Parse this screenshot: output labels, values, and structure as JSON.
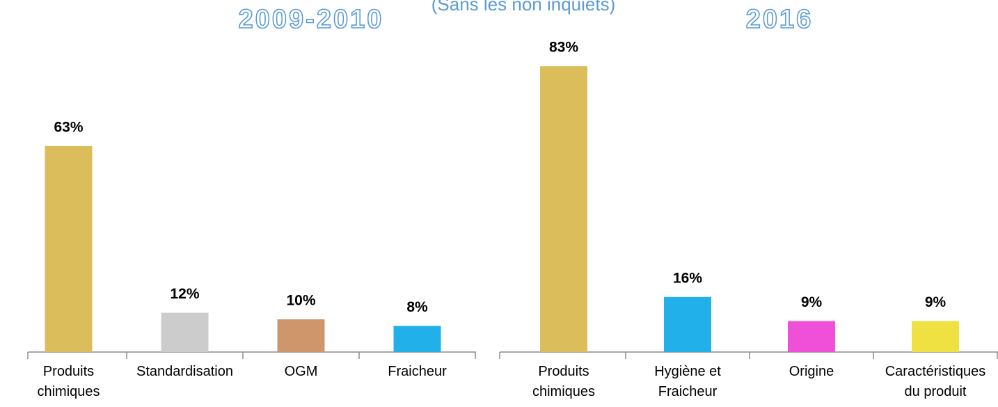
{
  "subtitle": "(Sans les non inquiets)",
  "chart_data": [
    {
      "type": "bar",
      "title": "2009-2010",
      "categories": [
        "Produits\nchimiques",
        "Standardisation",
        "OGM",
        "Fraicheur"
      ],
      "values": [
        63,
        12,
        10,
        8
      ],
      "value_labels": [
        "63%",
        "12%",
        "10%",
        "8%"
      ],
      "colors": [
        "#dbbd5b",
        "#cccccc",
        "#cf966c",
        "#22b0ea"
      ]
    },
    {
      "type": "bar",
      "title": "2016",
      "categories": [
        "Produits\nchimiques",
        "Hygiène et\nFraicheur",
        "Origine",
        "Caractéristiques\ndu produit"
      ],
      "values": [
        83,
        16,
        9,
        9
      ],
      "value_labels": [
        "83%",
        "16%",
        "9%",
        "9%"
      ],
      "colors": [
        "#dbbd5b",
        "#22b0ea",
        "#f04fd8",
        "#f0e143"
      ]
    }
  ]
}
